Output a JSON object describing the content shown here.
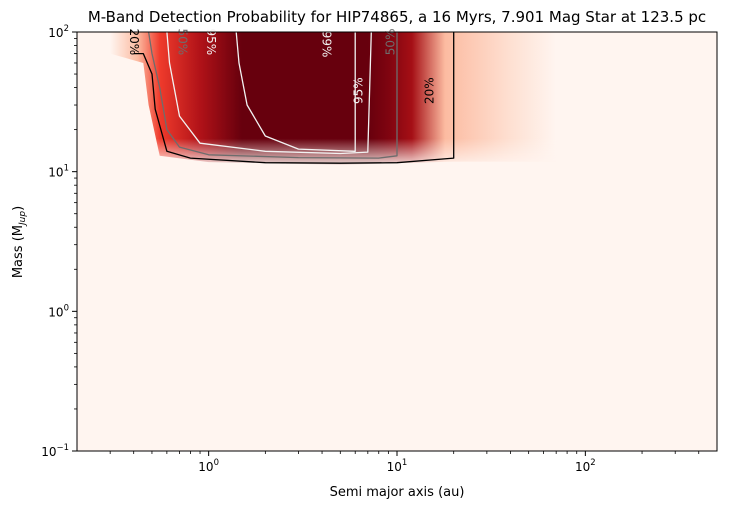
{
  "chart_data": {
    "type": "heatmap",
    "title": "M-Band Detection Probability for HIP74865, a 16 Myrs, 7.901 Mag Star at 123.5 pc",
    "xlabel": "Semi major axis (au)",
    "ylabel_main": "Mass (M",
    "ylabel_sub": "Jup",
    "ylabel_close": ")",
    "x_scale": "log",
    "y_scale": "log",
    "xlim": [
      0.2,
      500
    ],
    "ylim": [
      0.1,
      100
    ],
    "x_ticks": [
      {
        "value": 1,
        "base": "10",
        "exp": "0"
      },
      {
        "value": 10,
        "base": "10",
        "exp": "1"
      },
      {
        "value": 100,
        "base": "10",
        "exp": "2"
      }
    ],
    "y_ticks": [
      {
        "value": 0.1,
        "base": "10",
        "exp": "−1"
      },
      {
        "value": 1,
        "base": "10",
        "exp": "0"
      },
      {
        "value": 10,
        "base": "10",
        "exp": "1"
      },
      {
        "value": 100,
        "base": "10",
        "exp": "2"
      }
    ],
    "colormap": "Reds",
    "colors": {
      "background": "#fff5f0",
      "low": "#fcbba1",
      "mid": "#ef3b2c",
      "high": "#67000d",
      "contour_dark": "#000000",
      "contour_gray": "#6d6d6d",
      "contour_light": "#f2f2f2"
    },
    "detection_region": {
      "x_start_at_top": 0.42,
      "x_start_at_low": 0.5,
      "x_end": 20,
      "mass_min": 11.5,
      "mass_top": 100
    },
    "contours": [
      {
        "label": "20%",
        "color": "#000000",
        "points": [
          [
            0.4,
            70
          ],
          [
            0.45,
            70
          ],
          [
            0.5,
            50
          ],
          [
            0.52,
            28
          ],
          [
            0.6,
            14
          ],
          [
            0.8,
            12.5
          ],
          [
            2,
            11.6
          ],
          [
            5,
            11.5
          ],
          [
            10,
            11.6
          ],
          [
            20,
            12.5
          ],
          [
            20,
            100
          ]
        ]
      },
      {
        "label": "50%",
        "color": "#6d6d6d",
        "points": [
          [
            0.48,
            100
          ],
          [
            0.5,
            70
          ],
          [
            0.55,
            40
          ],
          [
            0.6,
            20
          ],
          [
            0.7,
            15
          ],
          [
            1,
            13.2
          ],
          [
            3,
            12.6
          ],
          [
            8,
            12.5
          ],
          [
            10,
            13
          ],
          [
            10,
            100
          ]
        ]
      },
      {
        "label": "95%",
        "color": "#f2f2f2",
        "points": [
          [
            0.6,
            100
          ],
          [
            0.62,
            60
          ],
          [
            0.7,
            25
          ],
          [
            0.9,
            16
          ],
          [
            2,
            14
          ],
          [
            5,
            13.5
          ],
          [
            7,
            13.8
          ],
          [
            7.3,
            100
          ]
        ]
      },
      {
        "label": "99%",
        "color": "#f2f2f2",
        "points": [
          [
            1.4,
            100
          ],
          [
            1.45,
            60
          ],
          [
            1.6,
            30
          ],
          [
            2,
            18
          ],
          [
            3,
            14.5
          ],
          [
            6,
            14
          ],
          [
            6,
            100
          ]
        ]
      }
    ]
  }
}
